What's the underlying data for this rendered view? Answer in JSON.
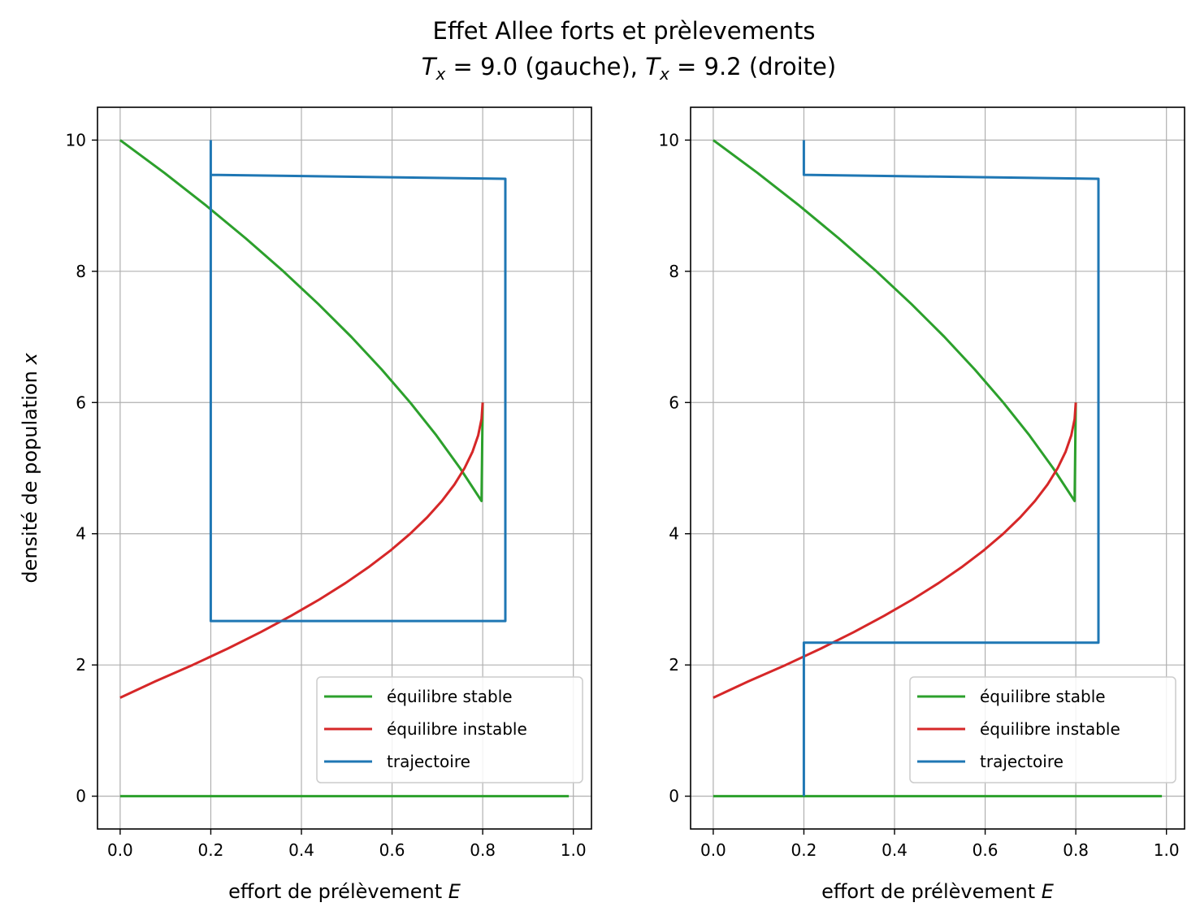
{
  "figure": {
    "title_line1": "Effet Allee forts et prèlevements",
    "title_line2": {
      "t1": "T",
      "sub1": "x",
      "mid": " = 9.0 (gauche), ",
      "t2": "T",
      "sub2": "x",
      "end": " = 9.2 (droite)"
    }
  },
  "colors": {
    "stable": "#2ca02c",
    "unstable": "#d62728",
    "trajectory": "#1f77b4",
    "grid": "#b0b0b0",
    "axes": "#000000"
  },
  "chart_data": [
    {
      "type": "line",
      "xlabel": {
        "text": "effort de prélèvement ",
        "var": "E"
      },
      "ylabel": {
        "text": "densité de population ",
        "var": "x"
      },
      "xlim": [
        -0.05,
        1.04
      ],
      "ylim": [
        -0.5,
        10.5
      ],
      "xticks": [
        0.0,
        0.2,
        0.4,
        0.6,
        0.8,
        1.0
      ],
      "xtick_labels": [
        "0.0",
        "0.2",
        "0.4",
        "0.6",
        "0.8",
        "1.0"
      ],
      "yticks": [
        0,
        2,
        4,
        6,
        8,
        10
      ],
      "ytick_labels": [
        "0",
        "2",
        "4",
        "6",
        "8",
        "10"
      ],
      "grid": true,
      "legend_position": "lower right",
      "legend": [
        "équilibre stable",
        "équilibre instable",
        "trajectoire"
      ],
      "series": [
        {
          "name": "équilibre stable",
          "color_key": "stable",
          "x": [
            0.0,
            0.0975,
            0.19,
            0.2775,
            0.36,
            0.4375,
            0.51,
            0.5775,
            0.64,
            0.6975,
            0.75,
            0.7975,
            0.8
          ],
          "y": [
            10,
            9.5,
            9.0,
            8.5,
            8.0,
            7.5,
            7.0,
            6.5,
            6.0,
            5.5,
            5.0,
            4.5,
            6.0
          ]
        },
        {
          "name": "équilibre instable",
          "color_key": "unstable",
          "x": [
            0.8,
            0.7975,
            0.79,
            0.7775,
            0.76,
            0.7375,
            0.71,
            0.6775,
            0.64,
            0.5975,
            0.55,
            0.4975,
            0.44,
            0.3775,
            0.31,
            0.2375,
            0.16,
            0.0775,
            0.0
          ],
          "y": [
            6.0,
            5.75,
            5.5,
            5.25,
            5.0,
            4.75,
            4.5,
            4.25,
            4.0,
            3.75,
            3.5,
            3.25,
            3.0,
            2.75,
            2.5,
            2.25,
            2.0,
            1.75,
            1.5
          ]
        },
        {
          "name": "équilibre stable (x = 0)",
          "color_key": "stable",
          "x": [
            0.0,
            0.99
          ],
          "y": [
            0,
            0
          ]
        },
        {
          "name": "trajectoire",
          "color_key": "trajectory",
          "x": [
            0.2,
            0.2,
            0.85,
            0.85,
            0.2,
            0.2
          ],
          "y": [
            10.0,
            9.47,
            9.41,
            2.67,
            2.67,
            9.47
          ]
        }
      ]
    },
    {
      "type": "line",
      "xlabel": {
        "text": "effort de prélèvement ",
        "var": "E"
      },
      "ylabel": null,
      "xlim": [
        -0.05,
        1.04
      ],
      "ylim": [
        -0.5,
        10.5
      ],
      "xticks": [
        0.0,
        0.2,
        0.4,
        0.6,
        0.8,
        1.0
      ],
      "xtick_labels": [
        "0.0",
        "0.2",
        "0.4",
        "0.6",
        "0.8",
        "1.0"
      ],
      "yticks": [
        0,
        2,
        4,
        6,
        8,
        10
      ],
      "ytick_labels": [
        "0",
        "2",
        "4",
        "6",
        "8",
        "10"
      ],
      "grid": true,
      "legend_position": "lower right",
      "legend": [
        "équilibre stable",
        "équilibre instable",
        "trajectoire"
      ],
      "series": [
        {
          "name": "équilibre stable",
          "color_key": "stable",
          "x": [
            0.0,
            0.0975,
            0.19,
            0.2775,
            0.36,
            0.4375,
            0.51,
            0.5775,
            0.64,
            0.6975,
            0.75,
            0.7975,
            0.8
          ],
          "y": [
            10,
            9.5,
            9.0,
            8.5,
            8.0,
            7.5,
            7.0,
            6.5,
            6.0,
            5.5,
            5.0,
            4.5,
            6.0
          ]
        },
        {
          "name": "équilibre instable",
          "color_key": "unstable",
          "x": [
            0.8,
            0.7975,
            0.79,
            0.7775,
            0.76,
            0.7375,
            0.71,
            0.6775,
            0.64,
            0.5975,
            0.55,
            0.4975,
            0.44,
            0.3775,
            0.31,
            0.2375,
            0.16,
            0.0775,
            0.0
          ],
          "y": [
            6.0,
            5.75,
            5.5,
            5.25,
            5.0,
            4.75,
            4.5,
            4.25,
            4.0,
            3.75,
            3.5,
            3.25,
            3.0,
            2.75,
            2.5,
            2.25,
            2.0,
            1.75,
            1.5
          ]
        },
        {
          "name": "équilibre stable (x = 0)",
          "color_key": "stable",
          "x": [
            0.0,
            0.99
          ],
          "y": [
            0,
            0
          ]
        },
        {
          "name": "trajectoire",
          "color_key": "trajectory",
          "x": [
            0.2,
            0.2,
            0.85,
            0.85,
            0.2,
            0.2
          ],
          "y": [
            10.0,
            9.47,
            9.41,
            2.34,
            2.34,
            0.0
          ]
        }
      ]
    }
  ]
}
